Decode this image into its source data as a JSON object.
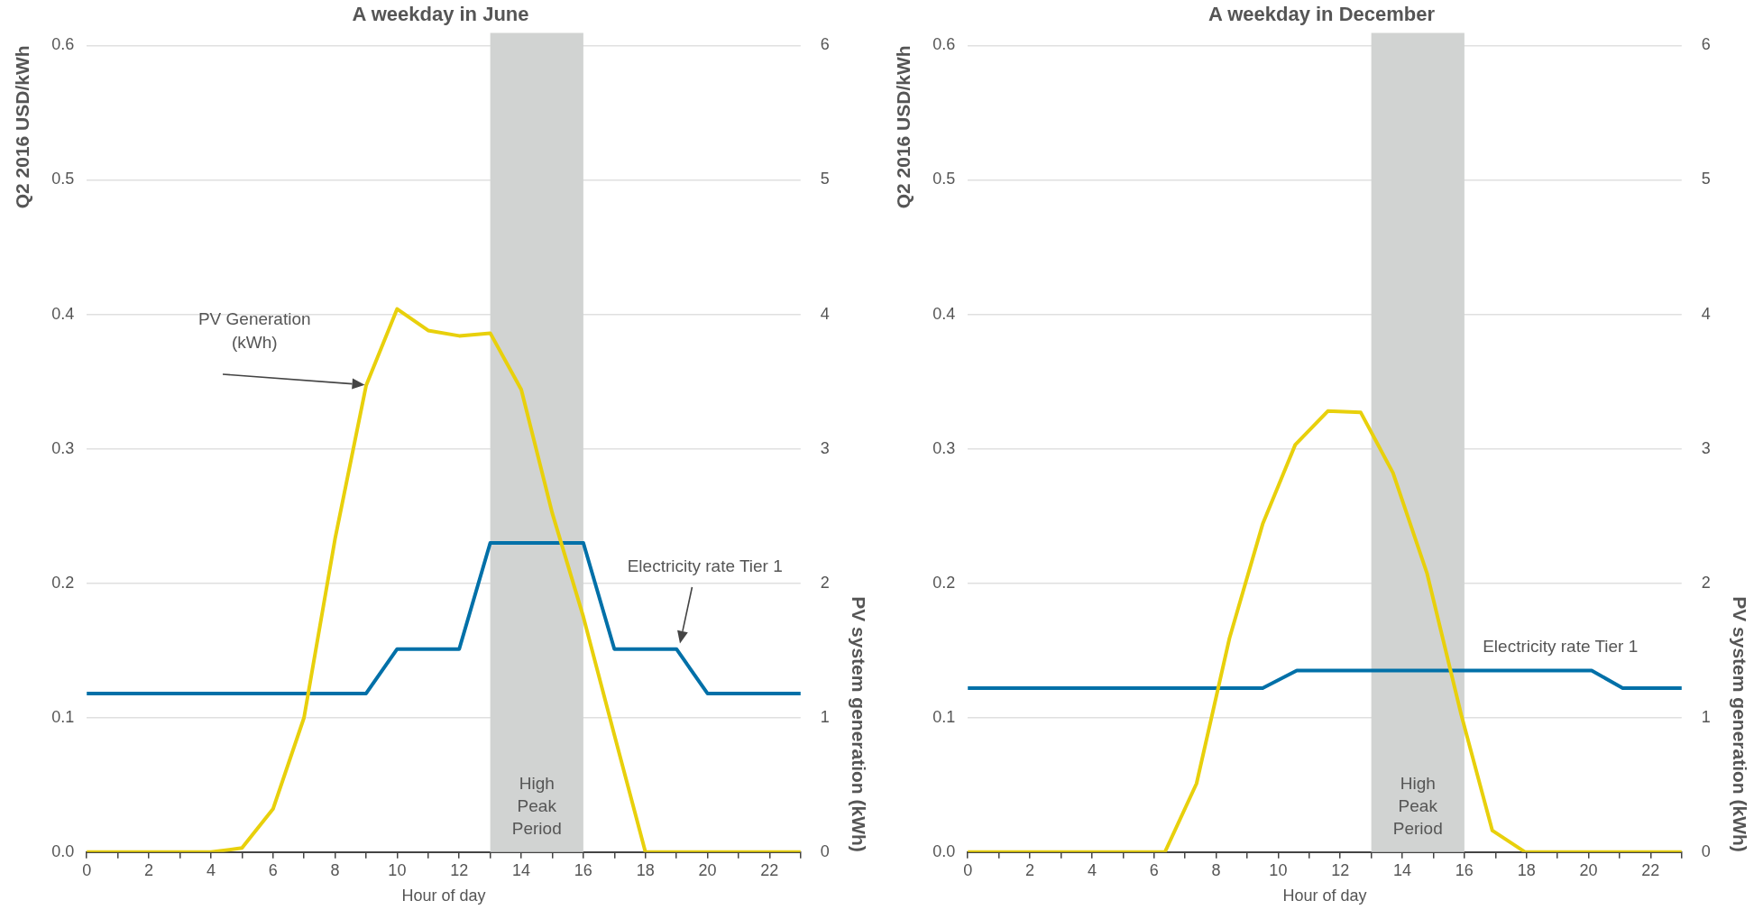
{
  "chart_data": [
    {
      "type": "line",
      "title": "A weekday in June",
      "xlabel": "Hour of day",
      "ylabel": "Q2 2016 USD/kWh",
      "y2label": "PV system generation (kWh)",
      "xlim": [
        0,
        23
      ],
      "xticks": [
        0,
        {
          "value": 1,
          "label": null
        },
        2,
        {
          "value": 3,
          "label": null
        },
        4,
        {
          "value": 5,
          "label": null
        },
        6,
        {
          "value": 7,
          "label": null
        },
        8,
        {
          "value": 9,
          "label": null
        },
        10,
        {
          "value": 11,
          "label": null
        },
        12,
        {
          "value": 13,
          "label": null
        },
        14,
        {
          "value": 15,
          "label": null
        },
        16,
        {
          "value": 17,
          "label": null
        },
        18,
        {
          "value": 19,
          "label": null
        },
        20,
        {
          "value": 21,
          "label": null
        },
        22,
        {
          "value": 23,
          "label": null
        }
      ],
      "ylim": [
        0,
        0.6
      ],
      "yticks": [
        {
          "value": 0,
          "label": "0.0"
        },
        0.1,
        0.2,
        0.3,
        0.4,
        0.5,
        0.6
      ],
      "y2lim": [
        0,
        6
      ],
      "y2ticks": [
        0,
        1,
        2,
        3,
        4,
        5,
        6
      ],
      "grid": "y",
      "marker": "none",
      "line_style": "solid",
      "legend": false,
      "series": [
        {
          "color": "#0070a8",
          "x": [
            0,
            1,
            2,
            3,
            4,
            5,
            6,
            7,
            8,
            9,
            10,
            11,
            12,
            13,
            14,
            15,
            16,
            17,
            18,
            19,
            20,
            21,
            22,
            23
          ],
          "values": [
            0.118,
            0.118,
            0.118,
            0.118,
            0.118,
            0.118,
            0.118,
            0.118,
            0.118,
            0.118,
            0.151,
            0.151,
            0.151,
            0.23,
            0.23,
            0.23,
            0.23,
            0.151,
            0.151,
            0.151,
            0.118,
            0.118,
            0.118,
            0.118
          ]
        },
        {
          "color": "#e8d00c",
          "axis": "y2",
          "x": [
            0,
            1,
            2,
            3,
            4,
            5,
            6,
            7,
            8,
            9,
            10,
            11,
            12,
            13,
            14,
            15,
            16,
            17,
            18,
            19,
            20,
            21,
            22,
            23
          ],
          "values": [
            0,
            0,
            0,
            0,
            0,
            0.03,
            0.32,
            1.0,
            2.33,
            3.47,
            4.04,
            3.88,
            3.84,
            3.86,
            3.44,
            2.52,
            1.75,
            0.87,
            0,
            0,
            0,
            0,
            0,
            0
          ]
        }
      ],
      "bands": [
        {
          "axis": "x",
          "from": 13,
          "to": 16,
          "label": "High Peak Period",
          "color": "#d1d3d2"
        }
      ],
      "annotations": [
        "PV Generation (kWh)",
        "Electricity rate Tier 1"
      ]
    },
    {
      "type": "line",
      "title": "A weekday in December",
      "xlabel": "Hour of day",
      "ylabel": "Q2 2016 USD/kWh",
      "y2label": "PV system generation (kWh)",
      "xlim": [
        0,
        23
      ],
      "xticks": [
        0,
        {
          "value": 1,
          "label": null
        },
        2,
        {
          "value": 3,
          "label": null
        },
        4,
        {
          "value": 5,
          "label": null
        },
        6,
        {
          "value": 7,
          "label": null
        },
        8,
        {
          "value": 9,
          "label": null
        },
        10,
        {
          "value": 11,
          "label": null
        },
        12,
        {
          "value": 13,
          "label": null
        },
        14,
        {
          "value": 15,
          "label": null
        },
        16,
        {
          "value": 17,
          "label": null
        },
        18,
        {
          "value": 19,
          "label": null
        },
        20,
        {
          "value": 21,
          "label": null
        },
        22,
        {
          "value": 23,
          "label": null
        }
      ],
      "ylim": [
        0,
        0.6
      ],
      "yticks": [
        {
          "value": 0,
          "label": "0.0"
        },
        0.1,
        0.2,
        0.3,
        0.4,
        0.5,
        0.6
      ],
      "y2lim": [
        0,
        6
      ],
      "y2ticks": [
        0,
        1,
        2,
        3,
        4,
        5,
        6
      ],
      "grid": "y",
      "marker": "none",
      "line_style": "solid",
      "legend": false,
      "series": [
        {
          "name": "Electricity rate Tier 1",
          "color": "#0070a8",
          "x": [
            0,
            9.5,
            10.6,
            20.1,
            21.1,
            23
          ],
          "values": [
            0.122,
            0.122,
            0.135,
            0.135,
            0.122,
            0.122
          ]
        },
        {
          "color": "#e8d00c",
          "axis": "y2",
          "x": [
            0,
            6.35,
            7.37,
            8.43,
            9.5,
            10.55,
            11.6,
            12.66,
            13.7,
            14.8,
            15.9,
            16.9,
            17.96,
            23
          ],
          "values": [
            0,
            0,
            0.51,
            1.59,
            2.44,
            3.03,
            3.28,
            3.27,
            2.82,
            2.07,
            1.02,
            0.16,
            0,
            0
          ]
        }
      ],
      "bands": [
        {
          "axis": "x",
          "from": 13,
          "to": 16,
          "label": "High Peak Period",
          "color": "#d1d3d2"
        }
      ]
    }
  ]
}
